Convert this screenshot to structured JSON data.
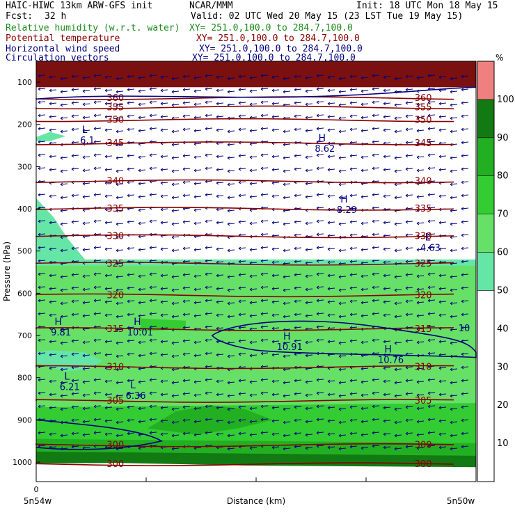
{
  "header": {
    "title": "HAIC-HIWC 13km ARW-GFS init",
    "org": "NCAR/MMM",
    "init": "Init: 18 UTC Mon 18 May 15",
    "fcst_label": "Fcst:",
    "fcst_value": "32 h",
    "valid": "Valid: 02 UTC Wed 20 May 15 (23 LST Tue 19 May 15)"
  },
  "legend": [
    {
      "name": "Relative humidity (w.r.t. water)",
      "xy": "XY= 251.0,100.0 to 284.7,100.0",
      "color": "#1a8a1a"
    },
    {
      "name": "Potential temperature",
      "xy": "XY= 251.0,100.0 to 284.7,100.0",
      "color": "#8b0000"
    },
    {
      "name": "Horizontal wind speed",
      "xy": "XY= 251.0,100.0 to 284.7,100.0",
      "color": "#000080"
    },
    {
      "name": "Circulation vectors",
      "xy": "XY= 251.0,100.0 to 284.7,100.0",
      "color": "#000080"
    }
  ],
  "chart_data": {
    "type": "cross-section",
    "ylabel": "Pressure (hPa)",
    "xlabel": "Distance (km)",
    "x_left_label": "5n54w",
    "x_right_label": "5n50w",
    "x_zero_label": "0",
    "y_ticks": [
      100,
      200,
      300,
      400,
      500,
      600,
      700,
      800,
      900,
      1000
    ],
    "ylim": [
      1050,
      50
    ],
    "colorbar": {
      "unit": "%",
      "ticks": [
        10,
        20,
        30,
        40,
        50,
        60,
        70,
        80,
        90,
        100
      ],
      "bins": [
        {
          "from": 0,
          "to": 50,
          "color": "#ffffff"
        },
        {
          "from": 50,
          "to": 60,
          "color": "#66e6a6"
        },
        {
          "from": 60,
          "to": 70,
          "color": "#66e066"
        },
        {
          "from": 70,
          "to": 80,
          "color": "#33cc33"
        },
        {
          "from": 80,
          "to": 90,
          "color": "#22b022"
        },
        {
          "from": 90,
          "to": 100,
          "color": "#127a12"
        },
        {
          "from": 100,
          "to": 110,
          "color": "#f08080"
        }
      ]
    },
    "theta_isentropes": [
      {
        "value": 360,
        "p": 138
      },
      {
        "value": 355,
        "p": 160
      },
      {
        "value": 350,
        "p": 190
      },
      {
        "value": 345,
        "p": 245
      },
      {
        "value": 340,
        "p": 335
      },
      {
        "value": 335,
        "p": 400
      },
      {
        "value": 330,
        "p": 465
      },
      {
        "value": 325,
        "p": 530
      },
      {
        "value": 320,
        "p": 605
      },
      {
        "value": 315,
        "p": 685
      },
      {
        "value": 310,
        "p": 775
      },
      {
        "value": 305,
        "p": 855
      },
      {
        "value": 300,
        "p": 960
      },
      {
        "value": 300,
        "p": 1005
      }
    ],
    "wind_extrema": [
      {
        "type": "L",
        "value": "6.1",
        "x": 0.11,
        "p": 220
      },
      {
        "type": "H",
        "value": "8.62",
        "x": 0.65,
        "p": 240
      },
      {
        "type": "H",
        "value": "8.29",
        "x": 0.7,
        "p": 385
      },
      {
        "type": "L",
        "value": "4.63",
        "x": 0.89,
        "p": 475
      },
      {
        "type": "H",
        "value": "9.81",
        "x": 0.05,
        "p": 675
      },
      {
        "type": "H",
        "value": "10.01",
        "x": 0.23,
        "p": 675
      },
      {
        "type": "H",
        "value": "10.91",
        "x": 0.57,
        "p": 710
      },
      {
        "type": "H",
        "value": "10.76",
        "x": 0.8,
        "p": 740
      },
      {
        "type": "L",
        "value": "6.21",
        "x": 0.07,
        "p": 805
      },
      {
        "type": "L",
        "value": "6.36",
        "x": 0.22,
        "p": 825
      }
    ],
    "wind_contour_label": "10"
  }
}
